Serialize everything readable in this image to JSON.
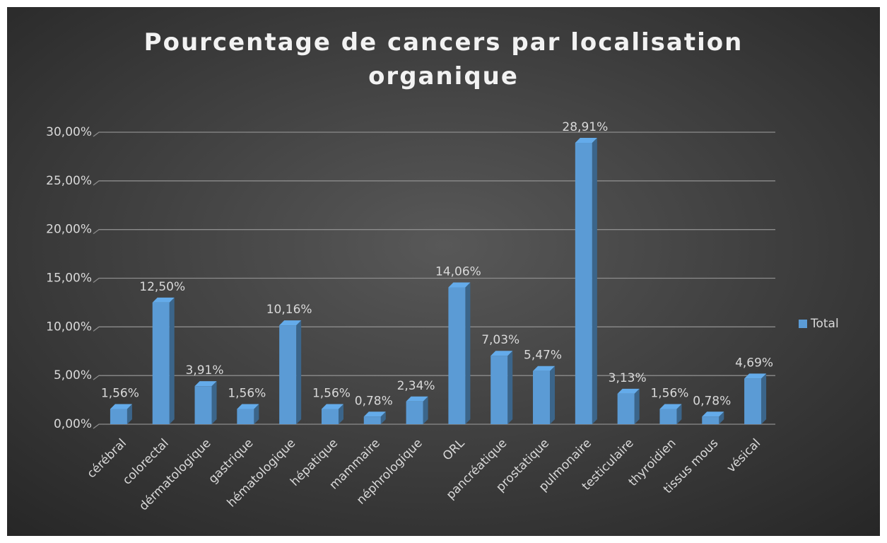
{
  "chart_data": {
    "type": "bar",
    "title": "Pourcentage de cancers par localisation organique",
    "categories": [
      "cérébral",
      "colorectal",
      "dérmatologique",
      "gastrique",
      "hématologique",
      "hépatique",
      "mammaire",
      "néphrologique",
      "ORL",
      "pancréatique",
      "prostatique",
      "pulmonaire",
      "testiculaire",
      "thyroidien",
      "tissus mous",
      "vésical"
    ],
    "series": [
      {
        "name": "Total",
        "color": "#5b9bd5",
        "values": [
          1.56,
          12.5,
          3.91,
          1.56,
          10.16,
          1.56,
          0.78,
          2.34,
          14.06,
          7.03,
          5.47,
          28.91,
          3.13,
          1.56,
          0.78,
          4.69
        ],
        "value_labels": [
          "1,56%",
          "12,50%",
          "3,91%",
          "1,56%",
          "10,16%",
          "1,56%",
          "0,78%",
          "2,34%",
          "14,06%",
          "7,03%",
          "5,47%",
          "28,91%",
          "3,13%",
          "1,56%",
          "0,78%",
          "4,69%"
        ]
      }
    ],
    "ylim": [
      0,
      30
    ],
    "yticks": [
      {
        "value": 0,
        "label": "0,00%"
      },
      {
        "value": 5,
        "label": "5,00%"
      },
      {
        "value": 10,
        "label": "10,00%"
      },
      {
        "value": 15,
        "label": "15,00%"
      },
      {
        "value": 20,
        "label": "20,00%"
      },
      {
        "value": 25,
        "label": "25,00%"
      },
      {
        "value": 30,
        "label": "30,00%"
      }
    ],
    "grid": true,
    "legend": "right"
  }
}
